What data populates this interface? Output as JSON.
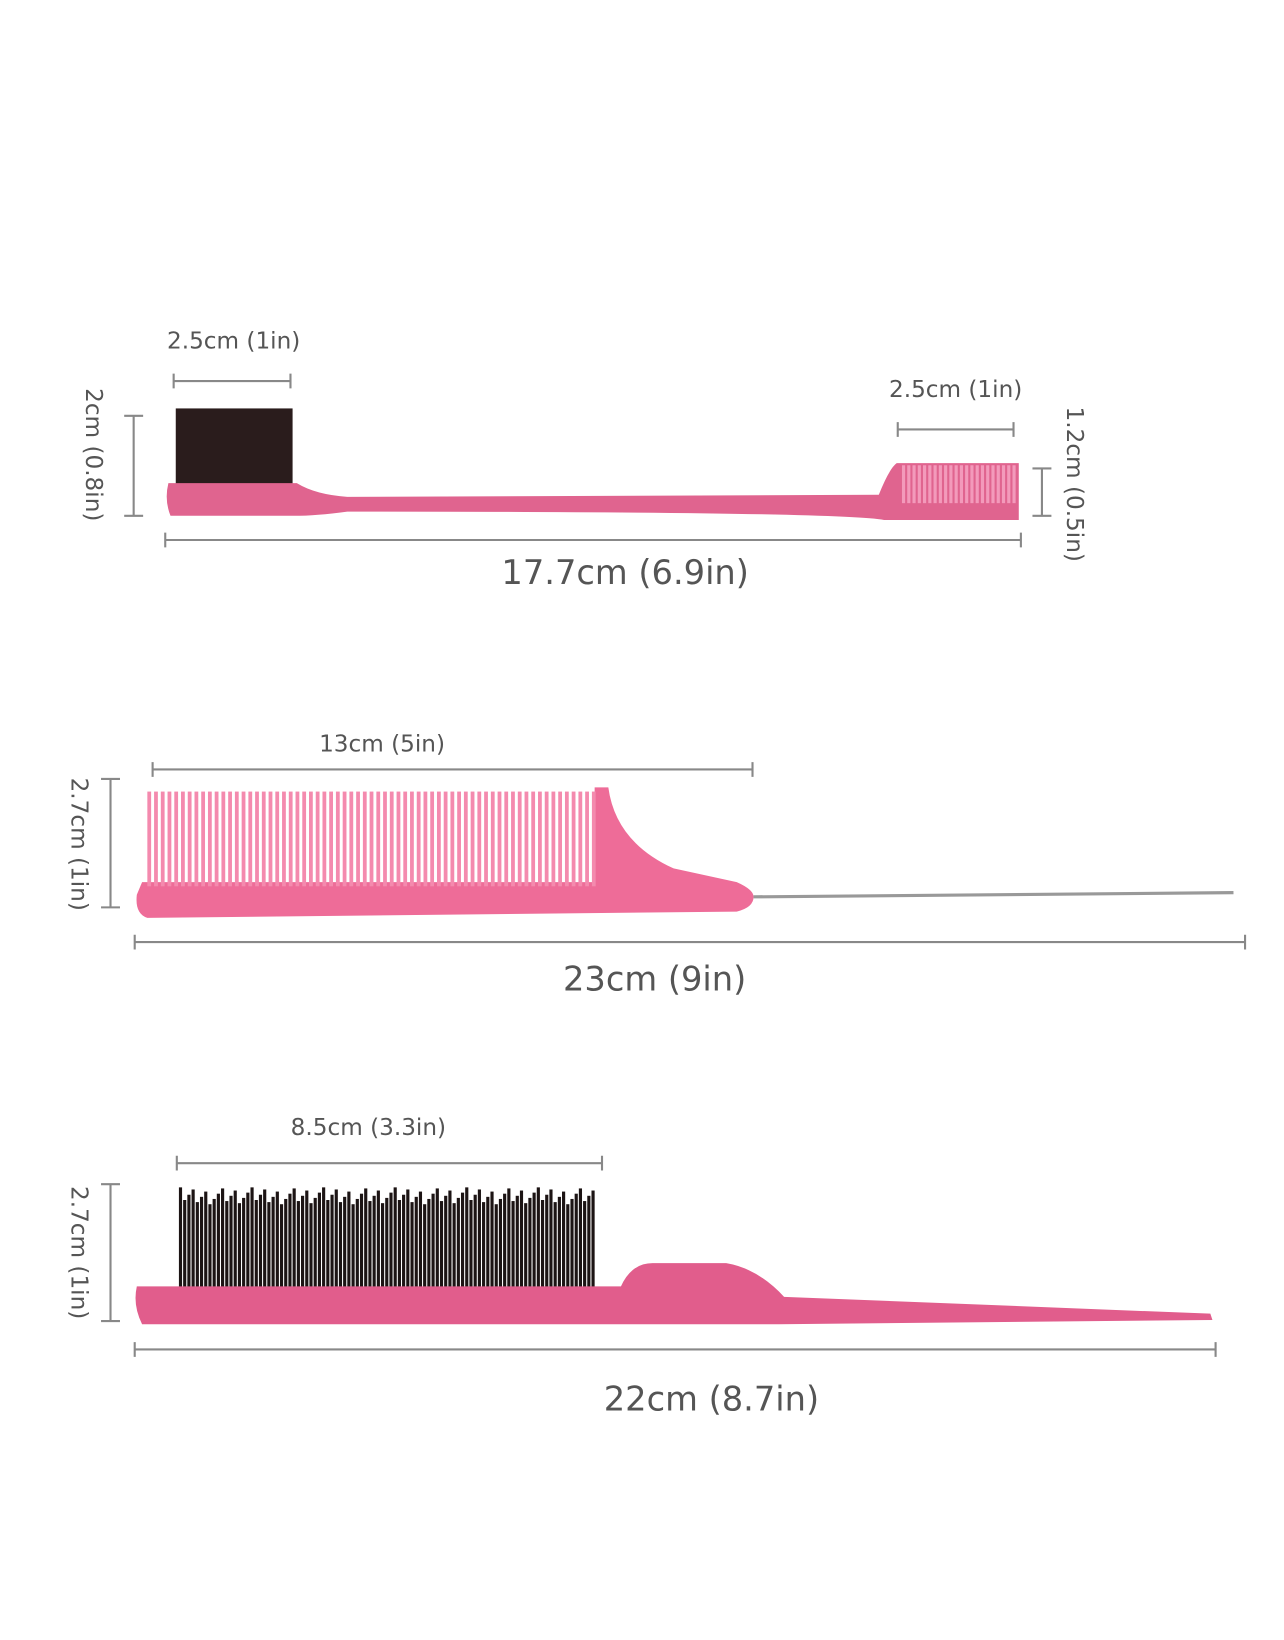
{
  "tools": [
    {
      "labels": [
        "2.5cm (1in)",
        "2cm (0.8in)",
        "2.5cm (1in)",
        "1.2cm (0.5in)",
        "17.7cm (6.9in)"
      ]
    },
    {
      "labels": [
        "13cm (5in)",
        "2.7cm (1in)",
        "23cm (9in)"
      ]
    },
    {
      "labels": [
        "8.5cm (3.3in)",
        "2.7cm (1in)",
        "22cm (8.7in)"
      ]
    }
  ]
}
